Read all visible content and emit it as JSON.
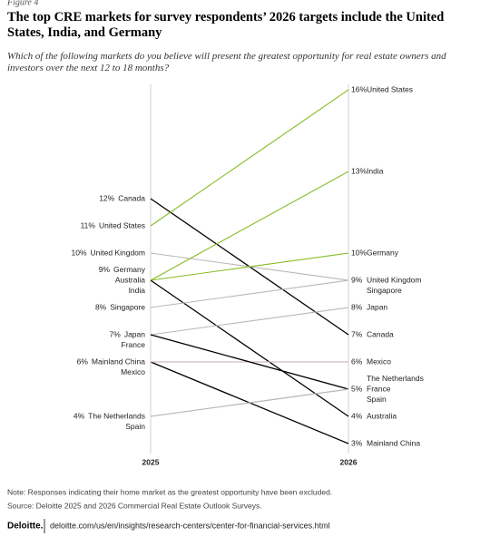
{
  "figure_label": "Figure 4",
  "chart_data": {
    "type": "slope",
    "title": "The top CRE markets for survey respondents’ 2026 targets include the United States, India, and Germany",
    "subtitle": "Which of the following markets do you believe will present the greatest opportunity for real estate owners and investors over the next 12 to 18 months?",
    "categories": [
      "2025",
      "2026"
    ],
    "ylim": [
      3,
      16
    ],
    "series": [
      {
        "name": "Canada",
        "color": "#000000",
        "values": [
          12,
          7
        ],
        "value_labels": [
          "12%",
          "7%"
        ]
      },
      {
        "name": "United States",
        "color": "#86bc25",
        "values": [
          11,
          16
        ],
        "value_labels": [
          "11%",
          "16%"
        ]
      },
      {
        "name": "United Kingdom",
        "color": "#b8b8b8",
        "values": [
          10,
          9
        ],
        "value_labels": [
          "10%",
          "9%"
        ]
      },
      {
        "name": "Germany",
        "color": "#86bc25",
        "values": [
          9,
          10
        ],
        "value_labels": [
          "9%",
          "10%"
        ]
      },
      {
        "name": "Australia",
        "color": "#000000",
        "values": [
          9,
          4
        ],
        "value_labels": [
          "9%",
          "4%"
        ]
      },
      {
        "name": "India",
        "color": "#86bc25",
        "values": [
          9,
          13
        ],
        "value_labels": [
          "9%",
          "13%"
        ]
      },
      {
        "name": "Singapore",
        "color": "#b8b8b8",
        "values": [
          8,
          9
        ],
        "value_labels": [
          "8%",
          "9%"
        ]
      },
      {
        "name": "Japan",
        "color": "#b8b8b8",
        "values": [
          7,
          8
        ],
        "value_labels": [
          "7%",
          "8%"
        ]
      },
      {
        "name": "Mainland China",
        "color": "#000000",
        "values": [
          6,
          3
        ],
        "value_labels": [
          "6%",
          "3%"
        ]
      },
      {
        "name": "Mexico",
        "color": "#c9a9b2",
        "values": [
          6,
          6
        ],
        "value_labels": [
          "6%",
          "6%"
        ]
      },
      {
        "name": "The Netherlands",
        "color": "#b8b8b8",
        "values": [
          4,
          5
        ],
        "value_labels": [
          "4%",
          "5%"
        ]
      },
      {
        "name": "France",
        "color": "#000000",
        "values": [
          7,
          5
        ],
        "value_labels": [
          "7%",
          "5%"
        ]
      },
      {
        "name": "Spain",
        "color": "#b8b8b8",
        "values": [
          4,
          5
        ],
        "value_labels": [
          "4%",
          "5%"
        ]
      }
    ]
  },
  "note": "Note: Responses indicating their home market as the greatest opportunity have been excluded.",
  "source": "Source: Deloitte 2025 and 2026 Commercial Real Estate Outlook Surveys.",
  "footer": {
    "brand": "Deloitte.",
    "url": "deloitte.com/us/en/insights/research-centers/center-for-financial-services.html"
  }
}
